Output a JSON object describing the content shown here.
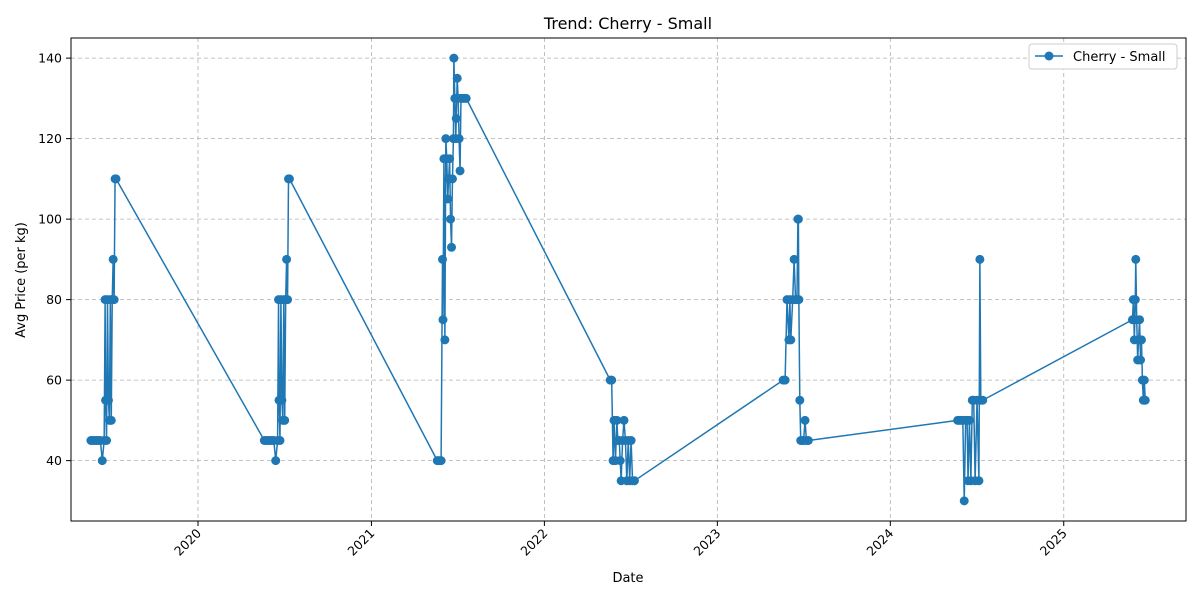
{
  "chart_data": {
    "type": "line",
    "title": "Trend: Cherry - Small",
    "xlabel": "Date",
    "ylabel": "Avg Price (per kg)",
    "x_ticks": [
      "2020",
      "2021",
      "2022",
      "2023",
      "2024",
      "2025"
    ],
    "y_ticks": [
      40,
      60,
      80,
      100,
      120,
      140
    ],
    "xlim": [
      "2019-04-08",
      "2025-09-16"
    ],
    "ylim": [
      25,
      145
    ],
    "grid": true,
    "legend_position": "top-right",
    "series": [
      {
        "name": "Cherry - Small",
        "color": "#1f77b4",
        "points": [
          [
            "2019-05-20",
            45
          ],
          [
            "2019-05-24",
            45
          ],
          [
            "2019-05-28",
            45
          ],
          [
            "2019-06-01",
            45
          ],
          [
            "2019-06-05",
            45
          ],
          [
            "2019-06-09",
            45
          ],
          [
            "2019-06-13",
            40
          ],
          [
            "2019-06-17",
            45
          ],
          [
            "2019-06-19",
            80
          ],
          [
            "2019-06-20",
            55
          ],
          [
            "2019-06-22",
            45
          ],
          [
            "2019-06-24",
            80
          ],
          [
            "2019-06-26",
            55
          ],
          [
            "2019-06-28",
            50
          ],
          [
            "2019-06-30",
            80
          ],
          [
            "2019-07-02",
            50
          ],
          [
            "2019-07-04",
            80
          ],
          [
            "2019-07-06",
            90
          ],
          [
            "2019-07-08",
            80
          ],
          [
            "2019-07-10",
            110
          ],
          [
            "2019-07-12",
            110
          ],
          [
            "2020-05-20",
            45
          ],
          [
            "2020-05-24",
            45
          ],
          [
            "2020-05-28",
            45
          ],
          [
            "2020-06-01",
            45
          ],
          [
            "2020-06-05",
            45
          ],
          [
            "2020-06-09",
            45
          ],
          [
            "2020-06-13",
            40
          ],
          [
            "2020-06-17",
            45
          ],
          [
            "2020-06-19",
            80
          ],
          [
            "2020-06-20",
            55
          ],
          [
            "2020-06-22",
            45
          ],
          [
            "2020-06-24",
            80
          ],
          [
            "2020-06-26",
            55
          ],
          [
            "2020-06-28",
            50
          ],
          [
            "2020-06-30",
            80
          ],
          [
            "2020-07-02",
            50
          ],
          [
            "2020-07-04",
            80
          ],
          [
            "2020-07-06",
            90
          ],
          [
            "2020-07-08",
            80
          ],
          [
            "2020-07-10",
            110
          ],
          [
            "2020-07-12",
            110
          ],
          [
            "2021-05-20",
            40
          ],
          [
            "2021-05-24",
            40
          ],
          [
            "2021-05-28",
            40
          ],
          [
            "2021-05-31",
            90
          ],
          [
            "2021-06-01",
            75
          ],
          [
            "2021-06-03",
            115
          ],
          [
            "2021-06-05",
            70
          ],
          [
            "2021-06-07",
            120
          ],
          [
            "2021-06-09",
            115
          ],
          [
            "2021-06-11",
            105
          ],
          [
            "2021-06-13",
            110
          ],
          [
            "2021-06-15",
            115
          ],
          [
            "2021-06-17",
            100
          ],
          [
            "2021-06-19",
            93
          ],
          [
            "2021-06-21",
            110
          ],
          [
            "2021-06-23",
            120
          ],
          [
            "2021-06-24",
            140
          ],
          [
            "2021-06-26",
            130
          ],
          [
            "2021-06-28",
            120
          ],
          [
            "2021-06-29",
            125
          ],
          [
            "2021-07-01",
            135
          ],
          [
            "2021-07-03",
            130
          ],
          [
            "2021-07-05",
            120
          ],
          [
            "2021-07-07",
            112
          ],
          [
            "2021-07-09",
            130
          ],
          [
            "2021-07-12",
            130
          ],
          [
            "2021-07-16",
            130
          ],
          [
            "2021-07-20",
            130
          ],
          [
            "2022-05-20",
            60
          ],
          [
            "2022-05-23",
            60
          ],
          [
            "2022-05-26",
            40
          ],
          [
            "2022-05-28",
            50
          ],
          [
            "2022-05-31",
            40
          ],
          [
            "2022-06-03",
            50
          ],
          [
            "2022-06-05",
            45
          ],
          [
            "2022-06-08",
            45
          ],
          [
            "2022-06-10",
            40
          ],
          [
            "2022-06-12",
            35
          ],
          [
            "2022-06-15",
            45
          ],
          [
            "2022-06-18",
            50
          ],
          [
            "2022-06-21",
            45
          ],
          [
            "2022-06-24",
            35
          ],
          [
            "2022-06-27",
            45
          ],
          [
            "2022-06-30",
            35
          ],
          [
            "2022-07-03",
            45
          ],
          [
            "2022-07-06",
            35
          ],
          [
            "2022-07-10",
            35
          ],
          [
            "2023-05-20",
            60
          ],
          [
            "2023-05-24",
            60
          ],
          [
            "2023-05-28",
            80
          ],
          [
            "2023-06-01",
            70
          ],
          [
            "2023-06-03",
            80
          ],
          [
            "2023-06-05",
            70
          ],
          [
            "2023-06-09",
            80
          ],
          [
            "2023-06-12",
            90
          ],
          [
            "2023-06-15",
            80
          ],
          [
            "2023-06-18",
            80
          ],
          [
            "2023-06-20",
            100
          ],
          [
            "2023-06-21",
            100
          ],
          [
            "2023-06-22",
            80
          ],
          [
            "2023-06-24",
            55
          ],
          [
            "2023-06-26",
            45
          ],
          [
            "2023-06-29",
            45
          ],
          [
            "2023-07-02",
            45
          ],
          [
            "2023-07-05",
            50
          ],
          [
            "2023-07-08",
            45
          ],
          [
            "2023-07-12",
            45
          ],
          [
            "2024-05-22",
            50
          ],
          [
            "2024-05-26",
            50
          ],
          [
            "2024-05-30",
            50
          ],
          [
            "2024-06-02",
            50
          ],
          [
            "2024-06-05",
            30
          ],
          [
            "2024-06-08",
            50
          ],
          [
            "2024-06-11",
            50
          ],
          [
            "2024-06-13",
            35
          ],
          [
            "2024-06-16",
            50
          ],
          [
            "2024-06-19",
            35
          ],
          [
            "2024-06-22",
            55
          ],
          [
            "2024-06-25",
            55
          ],
          [
            "2024-06-28",
            35
          ],
          [
            "2024-07-02",
            55
          ],
          [
            "2024-07-06",
            35
          ],
          [
            "2024-07-08",
            90
          ],
          [
            "2024-07-10",
            55
          ],
          [
            "2024-07-14",
            55
          ],
          [
            "2025-05-26",
            75
          ],
          [
            "2025-05-28",
            80
          ],
          [
            "2025-05-30",
            70
          ],
          [
            "2025-06-01",
            80
          ],
          [
            "2025-06-02",
            90
          ],
          [
            "2025-06-04",
            75
          ],
          [
            "2025-06-06",
            65
          ],
          [
            "2025-06-08",
            70
          ],
          [
            "2025-06-10",
            75
          ],
          [
            "2025-06-12",
            65
          ],
          [
            "2025-06-14",
            70
          ],
          [
            "2025-06-16",
            60
          ],
          [
            "2025-06-18",
            55
          ],
          [
            "2025-06-20",
            60
          ],
          [
            "2025-06-22",
            55
          ]
        ]
      }
    ]
  }
}
